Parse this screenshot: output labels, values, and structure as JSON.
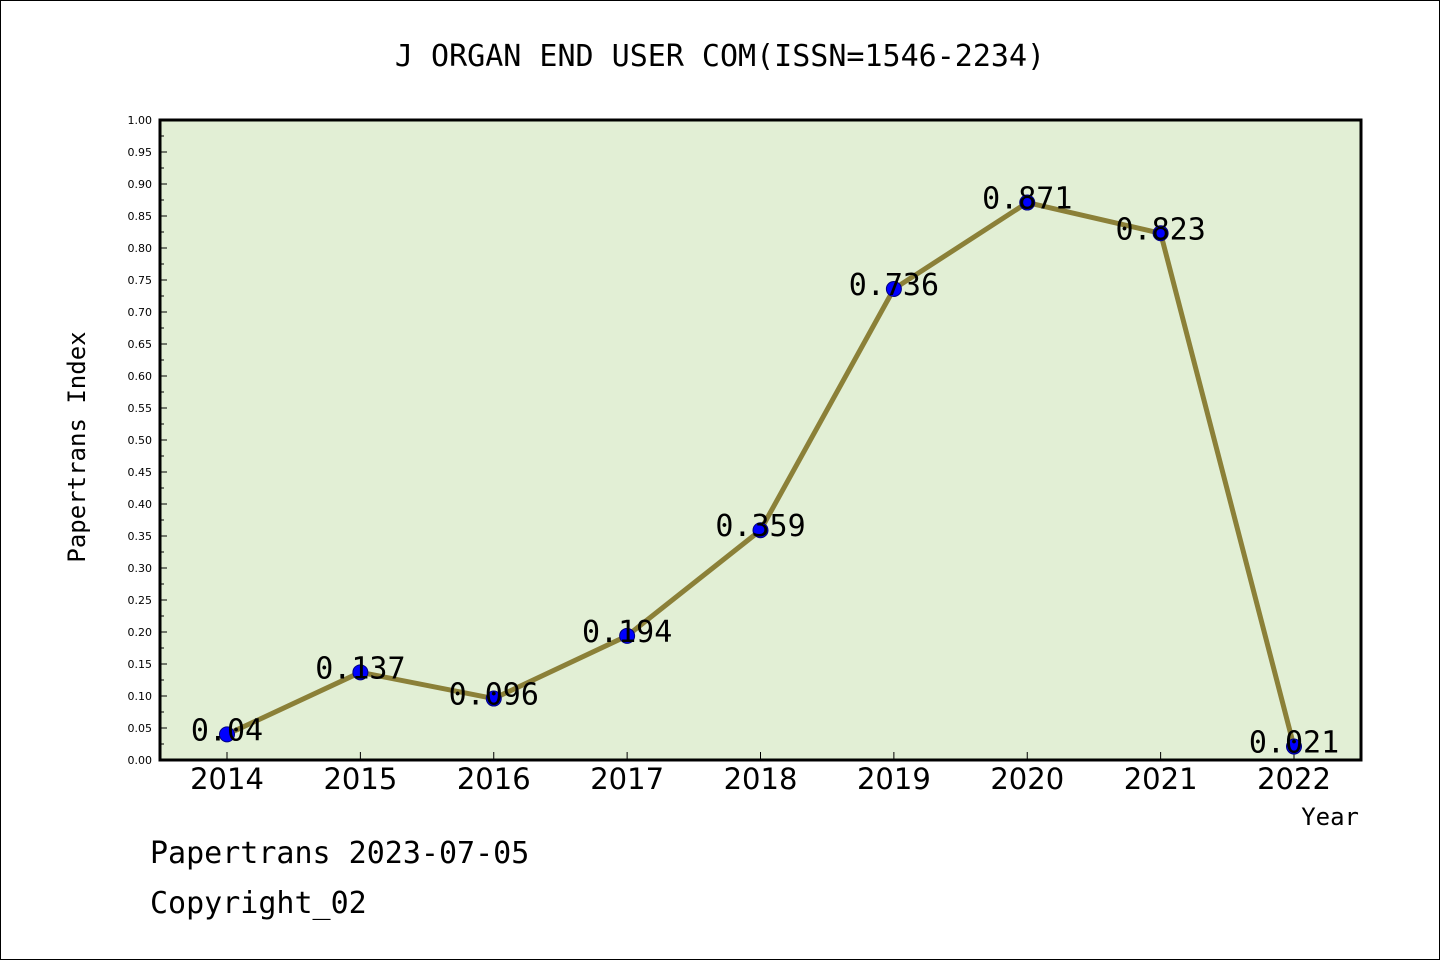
{
  "chart_data": {
    "type": "line",
    "title": "J ORGAN END USER COM(ISSN=1546-2234)",
    "xlabel": "Year",
    "ylabel": "Papertrans Index",
    "categories": [
      "2014",
      "2015",
      "2016",
      "2017",
      "2018",
      "2019",
      "2020",
      "2021",
      "2022"
    ],
    "values": [
      0.04,
      0.137,
      0.096,
      0.194,
      0.359,
      0.736,
      0.871,
      0.823,
      0.021
    ],
    "data_labels": [
      "0.04",
      "0.137",
      "0.096",
      "0.194",
      "0.359",
      "0.736",
      "0.871",
      "0.823",
      "0.021"
    ],
    "ylim": [
      0,
      1
    ],
    "yticks": [
      "0.00",
      "0.05",
      "0.10",
      "0.15",
      "0.20",
      "0.25",
      "0.30",
      "0.35",
      "0.40",
      "0.45",
      "0.50",
      "0.55",
      "0.60",
      "0.65",
      "0.70",
      "0.75",
      "0.80",
      "0.85",
      "0.90",
      "0.95",
      "1.00"
    ],
    "grid": false,
    "colors": {
      "plot_background": "#e2efd5",
      "line": "#8b8038",
      "marker": "#0000ff",
      "axis": "#000000"
    }
  },
  "footer": {
    "line1": "Papertrans 2023-07-05",
    "line2": "Copyright_02"
  }
}
